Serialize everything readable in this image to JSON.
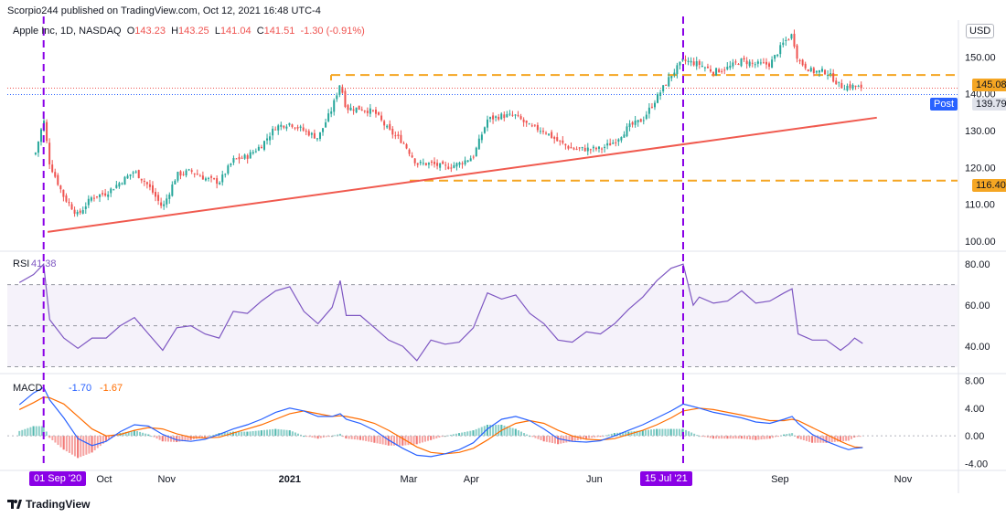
{
  "header": {
    "published": "Scorpio244 published on TradingView.com, Oct 12, 2021 16:48 UTC-4",
    "symbol": "Apple Inc, 1D, NASDAQ",
    "open_label": "O",
    "open": "143.23",
    "high_label": "H",
    "high": "143.25",
    "low_label": "L",
    "low": "141.04",
    "close_label": "C",
    "close": "141.51",
    "change": "-1.30 (-0.91%)",
    "currency": "USD"
  },
  "indicators": {
    "rsi_label": "RSI",
    "rsi_value": "41.38",
    "macd_label": "MACD",
    "macd_value": "-1.70",
    "signal_value": "-1.67"
  },
  "price_tags": {
    "resistance": "145.08",
    "post_label": "Post",
    "post_value": "139.79",
    "support": "116.40"
  },
  "markers": {
    "start": "01 Sep '20",
    "end": "15 Jul '21"
  },
  "footer": {
    "brand": "TradingView"
  },
  "colors": {
    "up": "#26a69a",
    "down": "#ef5350",
    "level": "#f5a623",
    "trend": "#f05a4f",
    "marker": "#8a00e6",
    "rsi": "#7e57c2",
    "macd": "#2962ff",
    "signal": "#ff6d00"
  },
  "chart_data": [
    {
      "type": "candlestick",
      "title": "Apple Inc, 1D, NASDAQ",
      "x_tick_labels": [
        "Oct",
        "Nov",
        "2021",
        "Mar",
        "Apr",
        "Jun",
        "Jul",
        "Sep",
        "Nov"
      ],
      "y_tick_labels": [
        "100.00",
        "110.00",
        "120.00",
        "130.00",
        "140.00",
        "150.00"
      ],
      "ylim": [
        98,
        158
      ],
      "weekly_close": [
        [
          "2020-08-28",
          124
        ],
        [
          "2020-09-01",
          133
        ],
        [
          "2020-09-04",
          121
        ],
        [
          "2020-09-11",
          112
        ],
        [
          "2020-09-18",
          107
        ],
        [
          "2020-09-25",
          112
        ],
        [
          "2020-10-02",
          113
        ],
        [
          "2020-10-09",
          116
        ],
        [
          "2020-10-16",
          119
        ],
        [
          "2020-10-23",
          115
        ],
        [
          "2020-10-30",
          109
        ],
        [
          "2020-11-06",
          118
        ],
        [
          "2020-11-13",
          119
        ],
        [
          "2020-11-20",
          117
        ],
        [
          "2020-11-27",
          116
        ],
        [
          "2020-12-04",
          122
        ],
        [
          "2020-12-11",
          123
        ],
        [
          "2020-12-18",
          126
        ],
        [
          "2020-12-25",
          131
        ],
        [
          "2021-01-01",
          132
        ],
        [
          "2021-01-08",
          130
        ],
        [
          "2021-01-15",
          128
        ],
        [
          "2021-01-22",
          136
        ],
        [
          "2021-01-26",
          143
        ],
        [
          "2021-01-29",
          136
        ],
        [
          "2021-02-05",
          136
        ],
        [
          "2021-02-12",
          135
        ],
        [
          "2021-02-19",
          130
        ],
        [
          "2021-02-26",
          127
        ],
        [
          "2021-03-05",
          121
        ],
        [
          "2021-03-12",
          121
        ],
        [
          "2021-03-19",
          120
        ],
        [
          "2021-03-26",
          121
        ],
        [
          "2021-04-02",
          123
        ],
        [
          "2021-04-09",
          133
        ],
        [
          "2021-04-16",
          134
        ],
        [
          "2021-04-23",
          134
        ],
        [
          "2021-04-30",
          131
        ],
        [
          "2021-05-07",
          130
        ],
        [
          "2021-05-14",
          127
        ],
        [
          "2021-05-21",
          125
        ],
        [
          "2021-05-28",
          125
        ],
        [
          "2021-06-04",
          125
        ],
        [
          "2021-06-11",
          127
        ],
        [
          "2021-06-18",
          131
        ],
        [
          "2021-06-25",
          133
        ],
        [
          "2021-07-02",
          139
        ],
        [
          "2021-07-09",
          145
        ],
        [
          "2021-07-15",
          149
        ],
        [
          "2021-07-23",
          148
        ],
        [
          "2021-07-30",
          146
        ],
        [
          "2021-08-06",
          147
        ],
        [
          "2021-08-13",
          149
        ],
        [
          "2021-08-20",
          148
        ],
        [
          "2021-08-27",
          148
        ],
        [
          "2021-09-03",
          154
        ],
        [
          "2021-09-07",
          156
        ],
        [
          "2021-09-10",
          149
        ],
        [
          "2021-09-17",
          146
        ],
        [
          "2021-09-24",
          146
        ],
        [
          "2021-10-01",
          142
        ],
        [
          "2021-10-08",
          142
        ],
        [
          "2021-10-12",
          141.51
        ]
      ],
      "levels": {
        "resistance": 145.08,
        "support": 116.4,
        "last_close": 141.51,
        "post": 139.79
      },
      "trendline": [
        [
          "2020-09-03",
          102.5
        ],
        [
          "2021-10-19",
          133.5
        ]
      ]
    },
    {
      "type": "line",
      "title": "RSI",
      "y_tick_labels": [
        "40.00",
        "60.00",
        "80.00"
      ],
      "ylim": [
        28,
        85
      ],
      "band": [
        30,
        70
      ],
      "midline": 50,
      "points": [
        [
          "2020-08-20",
          71
        ],
        [
          "2020-08-27",
          75
        ],
        [
          "2020-09-01",
          80
        ],
        [
          "2020-09-04",
          53
        ],
        [
          "2020-09-11",
          44
        ],
        [
          "2020-09-18",
          39
        ],
        [
          "2020-09-25",
          44
        ],
        [
          "2020-10-02",
          44
        ],
        [
          "2020-10-09",
          50
        ],
        [
          "2020-10-16",
          54
        ],
        [
          "2020-10-23",
          46
        ],
        [
          "2020-10-30",
          38
        ],
        [
          "2020-11-06",
          49
        ],
        [
          "2020-11-13",
          50
        ],
        [
          "2020-11-20",
          46
        ],
        [
          "2020-11-27",
          44
        ],
        [
          "2020-12-04",
          57
        ],
        [
          "2020-12-11",
          56
        ],
        [
          "2020-12-18",
          62
        ],
        [
          "2020-12-25",
          67
        ],
        [
          "2021-01-01",
          69
        ],
        [
          "2021-01-08",
          57
        ],
        [
          "2021-01-15",
          51
        ],
        [
          "2021-01-22",
          59
        ],
        [
          "2021-01-26",
          72
        ],
        [
          "2021-01-29",
          55
        ],
        [
          "2021-02-05",
          55
        ],
        [
          "2021-02-12",
          49
        ],
        [
          "2021-02-19",
          43
        ],
        [
          "2021-02-26",
          40
        ],
        [
          "2021-03-05",
          33
        ],
        [
          "2021-03-12",
          43
        ],
        [
          "2021-03-19",
          41
        ],
        [
          "2021-03-26",
          42
        ],
        [
          "2021-04-02",
          49
        ],
        [
          "2021-04-09",
          66
        ],
        [
          "2021-04-16",
          63
        ],
        [
          "2021-04-23",
          65
        ],
        [
          "2021-04-30",
          56
        ],
        [
          "2021-05-07",
          51
        ],
        [
          "2021-05-14",
          43
        ],
        [
          "2021-05-21",
          42
        ],
        [
          "2021-05-28",
          47
        ],
        [
          "2021-06-04",
          46
        ],
        [
          "2021-06-11",
          51
        ],
        [
          "2021-06-18",
          58
        ],
        [
          "2021-06-25",
          64
        ],
        [
          "2021-07-02",
          72
        ],
        [
          "2021-07-09",
          78
        ],
        [
          "2021-07-15",
          80
        ],
        [
          "2021-07-20",
          60
        ],
        [
          "2021-07-23",
          64
        ],
        [
          "2021-07-30",
          61
        ],
        [
          "2021-08-06",
          62
        ],
        [
          "2021-08-13",
          67
        ],
        [
          "2021-08-20",
          61
        ],
        [
          "2021-08-27",
          62
        ],
        [
          "2021-09-03",
          66
        ],
        [
          "2021-09-07",
          68
        ],
        [
          "2021-09-10",
          46
        ],
        [
          "2021-09-17",
          43
        ],
        [
          "2021-09-24",
          43
        ],
        [
          "2021-10-01",
          38
        ],
        [
          "2021-10-05",
          41
        ],
        [
          "2021-10-08",
          44
        ],
        [
          "2021-10-12",
          41.38
        ]
      ]
    },
    {
      "type": "line",
      "title": "MACD",
      "y_tick_labels": [
        "-4.00",
        "0.00",
        "4.00",
        "8.00"
      ],
      "ylim": [
        -4.6,
        8.6
      ],
      "series": [
        {
          "name": "MACD",
          "points": [
            [
              "2020-08-20",
              4.5
            ],
            [
              "2020-08-27",
              6.2
            ],
            [
              "2020-09-01",
              7.0
            ],
            [
              "2020-09-04",
              5.2
            ],
            [
              "2020-09-11",
              2.6
            ],
            [
              "2020-09-18",
              -0.4
            ],
            [
              "2020-09-25",
              -1.4
            ],
            [
              "2020-10-02",
              -0.8
            ],
            [
              "2020-10-09",
              0.6
            ],
            [
              "2020-10-16",
              1.6
            ],
            [
              "2020-10-23",
              1.4
            ],
            [
              "2020-10-30",
              0.2
            ],
            [
              "2020-11-06",
              -0.6
            ],
            [
              "2020-11-13",
              -0.8
            ],
            [
              "2020-11-20",
              -0.5
            ],
            [
              "2020-11-27",
              0.2
            ],
            [
              "2020-12-04",
              1.0
            ],
            [
              "2020-12-11",
              1.6
            ],
            [
              "2020-12-18",
              2.4
            ],
            [
              "2020-12-25",
              3.4
            ],
            [
              "2021-01-01",
              4.0
            ],
            [
              "2021-01-08",
              3.6
            ],
            [
              "2021-01-15",
              2.8
            ],
            [
              "2021-01-22",
              2.8
            ],
            [
              "2021-01-26",
              3.2
            ],
            [
              "2021-01-29",
              2.4
            ],
            [
              "2021-02-05",
              1.8
            ],
            [
              "2021-02-12",
              0.8
            ],
            [
              "2021-02-19",
              -0.6
            ],
            [
              "2021-02-26",
              -1.8
            ],
            [
              "2021-03-05",
              -2.8
            ],
            [
              "2021-03-12",
              -3.0
            ],
            [
              "2021-03-19",
              -2.6
            ],
            [
              "2021-03-26",
              -2.0
            ],
            [
              "2021-04-02",
              -1.0
            ],
            [
              "2021-04-09",
              1.0
            ],
            [
              "2021-04-16",
              2.4
            ],
            [
              "2021-04-23",
              2.8
            ],
            [
              "2021-04-30",
              2.2
            ],
            [
              "2021-05-07",
              1.0
            ],
            [
              "2021-05-14",
              -0.4
            ],
            [
              "2021-05-21",
              -0.8
            ],
            [
              "2021-05-28",
              -0.9
            ],
            [
              "2021-06-04",
              -0.7
            ],
            [
              "2021-06-11",
              0.0
            ],
            [
              "2021-06-18",
              0.8
            ],
            [
              "2021-06-25",
              1.6
            ],
            [
              "2021-07-02",
              2.6
            ],
            [
              "2021-07-09",
              3.6
            ],
            [
              "2021-07-15",
              4.6
            ],
            [
              "2021-07-23",
              4.0
            ],
            [
              "2021-07-30",
              3.4
            ],
            [
              "2021-08-06",
              3.0
            ],
            [
              "2021-08-13",
              2.6
            ],
            [
              "2021-08-20",
              2.0
            ],
            [
              "2021-08-27",
              1.8
            ],
            [
              "2021-09-03",
              2.4
            ],
            [
              "2021-09-07",
              2.8
            ],
            [
              "2021-09-10",
              1.8
            ],
            [
              "2021-09-17",
              0.2
            ],
            [
              "2021-09-24",
              -0.8
            ],
            [
              "2021-10-01",
              -1.6
            ],
            [
              "2021-10-05",
              -2.0
            ],
            [
              "2021-10-08",
              -1.8
            ],
            [
              "2021-10-12",
              -1.7
            ]
          ]
        },
        {
          "name": "Signal",
          "points": [
            [
              "2020-08-20",
              3.8
            ],
            [
              "2020-08-27",
              4.8
            ],
            [
              "2020-09-01",
              5.6
            ],
            [
              "2020-09-04",
              5.5
            ],
            [
              "2020-09-11",
              4.6
            ],
            [
              "2020-09-18",
              2.8
            ],
            [
              "2020-09-25",
              1.0
            ],
            [
              "2020-10-02",
              0.0
            ],
            [
              "2020-10-09",
              0.2
            ],
            [
              "2020-10-16",
              0.8
            ],
            [
              "2020-10-23",
              1.2
            ],
            [
              "2020-10-30",
              1.0
            ],
            [
              "2020-11-06",
              0.3
            ],
            [
              "2020-11-13",
              -0.2
            ],
            [
              "2020-11-20",
              -0.3
            ],
            [
              "2020-11-27",
              -0.2
            ],
            [
              "2020-12-04",
              0.4
            ],
            [
              "2020-12-11",
              1.0
            ],
            [
              "2020-12-18",
              1.6
            ],
            [
              "2020-12-25",
              2.4
            ],
            [
              "2021-01-01",
              3.2
            ],
            [
              "2021-01-08",
              3.6
            ],
            [
              "2021-01-15",
              3.2
            ],
            [
              "2021-01-22",
              2.8
            ],
            [
              "2021-01-26",
              2.9
            ],
            [
              "2021-01-29",
              2.8
            ],
            [
              "2021-02-05",
              2.4
            ],
            [
              "2021-02-12",
              1.8
            ],
            [
              "2021-02-19",
              0.8
            ],
            [
              "2021-02-26",
              -0.4
            ],
            [
              "2021-03-05",
              -1.6
            ],
            [
              "2021-03-12",
              -2.4
            ],
            [
              "2021-03-19",
              -2.6
            ],
            [
              "2021-03-26",
              -2.4
            ],
            [
              "2021-04-02",
              -1.8
            ],
            [
              "2021-04-09",
              -0.6
            ],
            [
              "2021-04-16",
              0.8
            ],
            [
              "2021-04-23",
              1.8
            ],
            [
              "2021-04-30",
              2.2
            ],
            [
              "2021-05-07",
              1.8
            ],
            [
              "2021-05-14",
              0.8
            ],
            [
              "2021-05-21",
              0.0
            ],
            [
              "2021-05-28",
              -0.5
            ],
            [
              "2021-06-04",
              -0.6
            ],
            [
              "2021-06-11",
              -0.4
            ],
            [
              "2021-06-18",
              0.2
            ],
            [
              "2021-06-25",
              0.8
            ],
            [
              "2021-07-02",
              1.6
            ],
            [
              "2021-07-09",
              2.6
            ],
            [
              "2021-07-15",
              3.6
            ],
            [
              "2021-07-23",
              4.0
            ],
            [
              "2021-07-30",
              3.8
            ],
            [
              "2021-08-06",
              3.4
            ],
            [
              "2021-08-13",
              3.0
            ],
            [
              "2021-08-20",
              2.6
            ],
            [
              "2021-08-27",
              2.2
            ],
            [
              "2021-09-03",
              2.2
            ],
            [
              "2021-09-07",
              2.4
            ],
            [
              "2021-09-10",
              2.2
            ],
            [
              "2021-09-17",
              1.2
            ],
            [
              "2021-09-24",
              0.2
            ],
            [
              "2021-10-01",
              -0.8
            ],
            [
              "2021-10-05",
              -1.3
            ],
            [
              "2021-10-08",
              -1.6
            ],
            [
              "2021-10-12",
              -1.67
            ]
          ]
        }
      ]
    }
  ]
}
